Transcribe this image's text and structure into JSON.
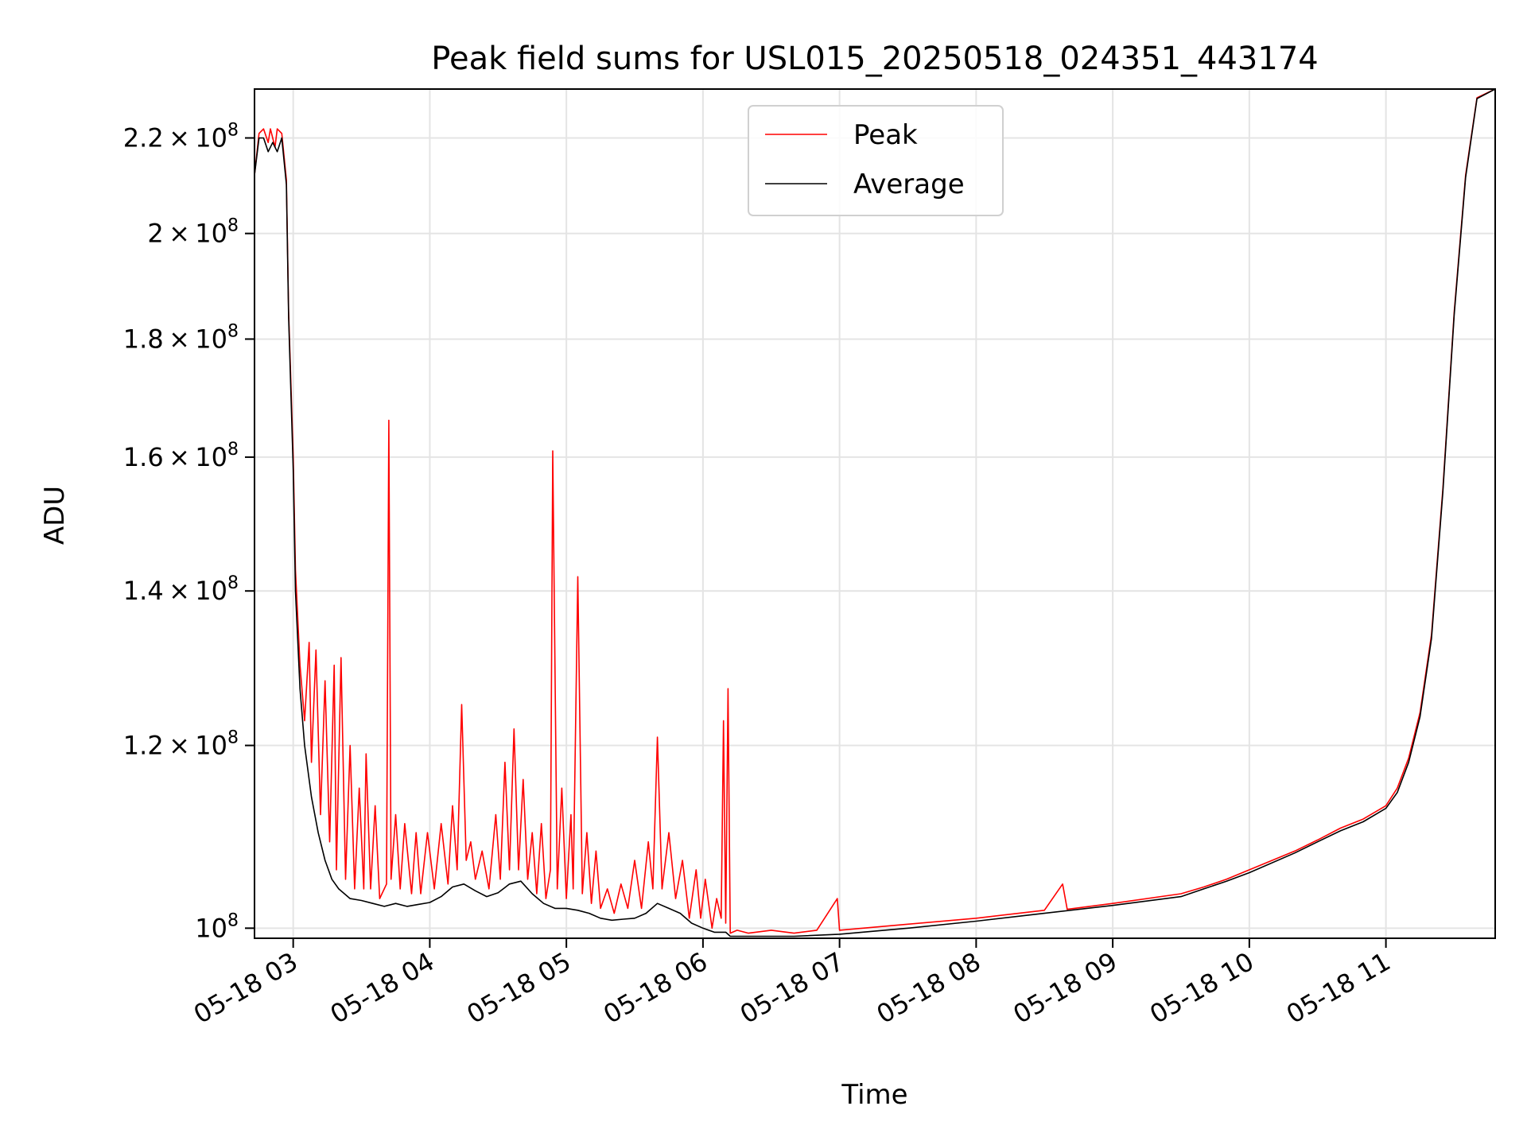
{
  "chart_data": {
    "type": "line",
    "title": "Peak field sums for USL015_20250518_024351_443174",
    "xlabel": "Time",
    "ylabel": "ADU",
    "x_range": [
      "2025-05-18 02:43",
      "2025-05-18 11:48"
    ],
    "ylim": [
      99000000,
      231000000
    ],
    "grid": true,
    "legend_position": "upper center",
    "x_ticks": [
      {
        "time": "2025-05-18 03:00",
        "label": "05-18 03"
      },
      {
        "time": "2025-05-18 04:00",
        "label": "05-18 04"
      },
      {
        "time": "2025-05-18 05:00",
        "label": "05-18 05"
      },
      {
        "time": "2025-05-18 06:00",
        "label": "05-18 06"
      },
      {
        "time": "2025-05-18 07:00",
        "label": "05-18 07"
      },
      {
        "time": "2025-05-18 08:00",
        "label": "05-18 08"
      },
      {
        "time": "2025-05-18 09:00",
        "label": "05-18 09"
      },
      {
        "time": "2025-05-18 10:00",
        "label": "05-18 10"
      },
      {
        "time": "2025-05-18 11:00",
        "label": "05-18 11"
      }
    ],
    "y_ticks": [
      {
        "value": 100000000,
        "mantissa": "",
        "base": "10",
        "exp": "8"
      },
      {
        "value": 120000000,
        "mantissa": "1.2",
        "base": "10",
        "exp": "8"
      },
      {
        "value": 140000000,
        "mantissa": "1.4",
        "base": "10",
        "exp": "8"
      },
      {
        "value": 160000000,
        "mantissa": "1.6",
        "base": "10",
        "exp": "8"
      },
      {
        "value": 180000000,
        "mantissa": "1.8",
        "base": "10",
        "exp": "8"
      },
      {
        "value": 200000000,
        "mantissa": "2",
        "base": "10",
        "exp": "8"
      },
      {
        "value": 220000000,
        "mantissa": "2.2",
        "base": "10",
        "exp": "8"
      }
    ],
    "series": [
      {
        "name": "Peak",
        "color": "#ff0000",
        "points": [
          [
            "2025-05-18 02:43",
            212000000
          ],
          [
            "2025-05-18 02:45",
            221000000
          ],
          [
            "2025-05-18 02:47",
            222000000
          ],
          [
            "2025-05-18 02:49",
            219000000
          ],
          [
            "2025-05-18 02:50",
            222000000
          ],
          [
            "2025-05-18 02:52",
            218000000
          ],
          [
            "2025-05-18 02:53",
            222000000
          ],
          [
            "2025-05-18 02:55",
            221000000
          ],
          [
            "2025-05-18 02:57",
            211000000
          ],
          [
            "2025-05-18 02:58",
            185000000
          ],
          [
            "2025-05-18 03:00",
            160000000
          ],
          [
            "2025-05-18 03:01",
            143000000
          ],
          [
            "2025-05-18 03:03",
            130000000
          ],
          [
            "2025-05-18 03:05",
            123000000
          ],
          [
            "2025-05-18 03:07",
            133000000
          ],
          [
            "2025-05-18 03:08",
            118000000
          ],
          [
            "2025-05-18 03:10",
            132000000
          ],
          [
            "2025-05-18 03:12",
            112000000
          ],
          [
            "2025-05-18 03:14",
            128000000
          ],
          [
            "2025-05-18 03:16",
            109000000
          ],
          [
            "2025-05-18 03:18",
            130000000
          ],
          [
            "2025-05-18 03:19",
            106000000
          ],
          [
            "2025-05-18 03:21",
            131000000
          ],
          [
            "2025-05-18 03:23",
            105000000
          ],
          [
            "2025-05-18 03:25",
            120000000
          ],
          [
            "2025-05-18 03:27",
            104000000
          ],
          [
            "2025-05-18 03:29",
            115000000
          ],
          [
            "2025-05-18 03:31",
            104000000
          ],
          [
            "2025-05-18 03:32",
            119000000
          ],
          [
            "2025-05-18 03:34",
            104000000
          ],
          [
            "2025-05-18 03:36",
            113000000
          ],
          [
            "2025-05-18 03:38",
            103000000
          ],
          [
            "2025-05-18 03:41",
            104500000
          ],
          [
            "2025-05-18 03:42",
            166000000
          ],
          [
            "2025-05-18 03:43",
            105000000
          ],
          [
            "2025-05-18 03:45",
            112000000
          ],
          [
            "2025-05-18 03:47",
            104000000
          ],
          [
            "2025-05-18 03:49",
            111000000
          ],
          [
            "2025-05-18 03:52",
            103500000
          ],
          [
            "2025-05-18 03:54",
            110000000
          ],
          [
            "2025-05-18 03:56",
            103500000
          ],
          [
            "2025-05-18 03:59",
            110000000
          ],
          [
            "2025-05-18 04:02",
            104000000
          ],
          [
            "2025-05-18 04:05",
            111000000
          ],
          [
            "2025-05-18 04:08",
            104500000
          ],
          [
            "2025-05-18 04:10",
            113000000
          ],
          [
            "2025-05-18 04:12",
            106000000
          ],
          [
            "2025-05-18 04:14",
            125000000
          ],
          [
            "2025-05-18 04:16",
            107000000
          ],
          [
            "2025-05-18 04:18",
            109000000
          ],
          [
            "2025-05-18 04:20",
            105000000
          ],
          [
            "2025-05-18 04:23",
            108000000
          ],
          [
            "2025-05-18 04:26",
            104000000
          ],
          [
            "2025-05-18 04:29",
            112000000
          ],
          [
            "2025-05-18 04:31",
            105000000
          ],
          [
            "2025-05-18 04:33",
            118000000
          ],
          [
            "2025-05-18 04:35",
            106000000
          ],
          [
            "2025-05-18 04:37",
            122000000
          ],
          [
            "2025-05-18 04:39",
            106000000
          ],
          [
            "2025-05-18 04:41",
            116000000
          ],
          [
            "2025-05-18 04:43",
            105000000
          ],
          [
            "2025-05-18 04:45",
            110000000
          ],
          [
            "2025-05-18 04:47",
            103500000
          ],
          [
            "2025-05-18 04:49",
            111000000
          ],
          [
            "2025-05-18 04:51",
            103000000
          ],
          [
            "2025-05-18 04:53",
            106000000
          ],
          [
            "2025-05-18 04:54",
            161000000
          ],
          [
            "2025-05-18 04:56",
            104000000
          ],
          [
            "2025-05-18 04:58",
            115000000
          ],
          [
            "2025-05-18 05:00",
            103000000
          ],
          [
            "2025-05-18 05:02",
            112000000
          ],
          [
            "2025-05-18 05:03",
            104000000
          ],
          [
            "2025-05-18 05:05",
            142000000
          ],
          [
            "2025-05-18 05:07",
            103500000
          ],
          [
            "2025-05-18 05:09",
            110000000
          ],
          [
            "2025-05-18 05:11",
            102500000
          ],
          [
            "2025-05-18 05:13",
            108000000
          ],
          [
            "2025-05-18 05:15",
            102000000
          ],
          [
            "2025-05-18 05:18",
            104000000
          ],
          [
            "2025-05-18 05:21",
            101500000
          ],
          [
            "2025-05-18 05:24",
            104500000
          ],
          [
            "2025-05-18 05:27",
            102000000
          ],
          [
            "2025-05-18 05:30",
            107000000
          ],
          [
            "2025-05-18 05:33",
            102000000
          ],
          [
            "2025-05-18 05:36",
            109000000
          ],
          [
            "2025-05-18 05:38",
            104000000
          ],
          [
            "2025-05-18 05:40",
            121000000
          ],
          [
            "2025-05-18 05:42",
            104000000
          ],
          [
            "2025-05-18 05:45",
            110000000
          ],
          [
            "2025-05-18 05:48",
            103000000
          ],
          [
            "2025-05-18 05:51",
            107000000
          ],
          [
            "2025-05-18 05:54",
            101000000
          ],
          [
            "2025-05-18 05:57",
            106000000
          ],
          [
            "2025-05-18 05:59",
            101000000
          ],
          [
            "2025-05-18 06:01",
            105000000
          ],
          [
            "2025-05-18 06:04",
            100000000
          ],
          [
            "2025-05-18 06:06",
            103000000
          ],
          [
            "2025-05-18 06:08",
            101000000
          ],
          [
            "2025-05-18 06:09",
            123000000
          ],
          [
            "2025-05-18 06:10",
            100500000
          ],
          [
            "2025-05-18 06:11",
            127000000
          ],
          [
            "2025-05-18 06:12",
            99500000
          ],
          [
            "2025-05-18 06:15",
            99800000
          ],
          [
            "2025-05-18 06:20",
            99500000
          ],
          [
            "2025-05-18 06:30",
            99800000
          ],
          [
            "2025-05-18 06:40",
            99500000
          ],
          [
            "2025-05-18 06:50",
            99800000
          ],
          [
            "2025-05-18 06:59",
            103000000
          ],
          [
            "2025-05-18 07:00",
            99800000
          ],
          [
            "2025-05-18 07:30",
            100400000
          ],
          [
            "2025-05-18 08:00",
            101000000
          ],
          [
            "2025-05-18 08:30",
            101800000
          ],
          [
            "2025-05-18 08:38",
            104500000
          ],
          [
            "2025-05-18 08:40",
            101900000
          ],
          [
            "2025-05-18 09:00",
            102500000
          ],
          [
            "2025-05-18 09:30",
            103500000
          ],
          [
            "2025-05-18 09:40",
            104200000
          ],
          [
            "2025-05-18 09:50",
            105000000
          ],
          [
            "2025-05-18 10:00",
            106000000
          ],
          [
            "2025-05-18 10:20",
            108000000
          ],
          [
            "2025-05-18 10:30",
            109200000
          ],
          [
            "2025-05-18 10:40",
            110500000
          ],
          [
            "2025-05-18 10:50",
            111500000
          ],
          [
            "2025-05-18 11:00",
            113000000
          ],
          [
            "2025-05-18 11:05",
            115000000
          ],
          [
            "2025-05-18 11:10",
            118500000
          ],
          [
            "2025-05-18 11:15",
            124000000
          ],
          [
            "2025-05-18 11:20",
            134000000
          ],
          [
            "2025-05-18 11:25",
            155000000
          ],
          [
            "2025-05-18 11:30",
            185000000
          ],
          [
            "2025-05-18 11:35",
            212000000
          ],
          [
            "2025-05-18 11:40",
            229000000
          ],
          [
            "2025-05-18 11:48",
            231000000
          ]
        ]
      },
      {
        "name": "Average",
        "color": "#000000",
        "points": [
          [
            "2025-05-18 02:43",
            212000000
          ],
          [
            "2025-05-18 02:45",
            220000000
          ],
          [
            "2025-05-18 02:47",
            220000000
          ],
          [
            "2025-05-18 02:49",
            217000000
          ],
          [
            "2025-05-18 02:51",
            219000000
          ],
          [
            "2025-05-18 02:53",
            217000000
          ],
          [
            "2025-05-18 02:55",
            220000000
          ],
          [
            "2025-05-18 02:57",
            210000000
          ],
          [
            "2025-05-18 02:58",
            184000000
          ],
          [
            "2025-05-18 03:00",
            158000000
          ],
          [
            "2025-05-18 03:01",
            140000000
          ],
          [
            "2025-05-18 03:03",
            127000000
          ],
          [
            "2025-05-18 03:05",
            120000000
          ],
          [
            "2025-05-18 03:08",
            114000000
          ],
          [
            "2025-05-18 03:11",
            110000000
          ],
          [
            "2025-05-18 03:14",
            107000000
          ],
          [
            "2025-05-18 03:17",
            105000000
          ],
          [
            "2025-05-18 03:20",
            104000000
          ],
          [
            "2025-05-18 03:25",
            103000000
          ],
          [
            "2025-05-18 03:30",
            102800000
          ],
          [
            "2025-05-18 03:35",
            102500000
          ],
          [
            "2025-05-18 03:40",
            102200000
          ],
          [
            "2025-05-18 03:45",
            102500000
          ],
          [
            "2025-05-18 03:50",
            102200000
          ],
          [
            "2025-05-18 03:55",
            102400000
          ],
          [
            "2025-05-18 04:00",
            102600000
          ],
          [
            "2025-05-18 04:05",
            103200000
          ],
          [
            "2025-05-18 04:10",
            104200000
          ],
          [
            "2025-05-18 04:15",
            104500000
          ],
          [
            "2025-05-18 04:20",
            103800000
          ],
          [
            "2025-05-18 04:25",
            103200000
          ],
          [
            "2025-05-18 04:30",
            103600000
          ],
          [
            "2025-05-18 04:35",
            104500000
          ],
          [
            "2025-05-18 04:40",
            104800000
          ],
          [
            "2025-05-18 04:45",
            103500000
          ],
          [
            "2025-05-18 04:50",
            102500000
          ],
          [
            "2025-05-18 04:55",
            102000000
          ],
          [
            "2025-05-18 05:00",
            102000000
          ],
          [
            "2025-05-18 05:05",
            101800000
          ],
          [
            "2025-05-18 05:10",
            101500000
          ],
          [
            "2025-05-18 05:15",
            101000000
          ],
          [
            "2025-05-18 05:20",
            100800000
          ],
          [
            "2025-05-18 05:25",
            100900000
          ],
          [
            "2025-05-18 05:30",
            101000000
          ],
          [
            "2025-05-18 05:35",
            101500000
          ],
          [
            "2025-05-18 05:40",
            102500000
          ],
          [
            "2025-05-18 05:45",
            102000000
          ],
          [
            "2025-05-18 05:50",
            101500000
          ],
          [
            "2025-05-18 05:55",
            100500000
          ],
          [
            "2025-05-18 06:00",
            100000000
          ],
          [
            "2025-05-18 06:05",
            99600000
          ],
          [
            "2025-05-18 06:10",
            99600000
          ],
          [
            "2025-05-18 06:12",
            99200000
          ],
          [
            "2025-05-18 06:20",
            99200000
          ],
          [
            "2025-05-18 06:40",
            99200000
          ],
          [
            "2025-05-18 07:00",
            99400000
          ],
          [
            "2025-05-18 07:30",
            100000000
          ],
          [
            "2025-05-18 08:00",
            100700000
          ],
          [
            "2025-05-18 08:30",
            101500000
          ],
          [
            "2025-05-18 09:00",
            102300000
          ],
          [
            "2025-05-18 09:30",
            103200000
          ],
          [
            "2025-05-18 09:40",
            104000000
          ],
          [
            "2025-05-18 09:50",
            104800000
          ],
          [
            "2025-05-18 10:00",
            105700000
          ],
          [
            "2025-05-18 10:20",
            107800000
          ],
          [
            "2025-05-18 10:30",
            109000000
          ],
          [
            "2025-05-18 10:40",
            110200000
          ],
          [
            "2025-05-18 10:50",
            111200000
          ],
          [
            "2025-05-18 11:00",
            112700000
          ],
          [
            "2025-05-18 11:05",
            114500000
          ],
          [
            "2025-05-18 11:10",
            118000000
          ],
          [
            "2025-05-18 11:15",
            123500000
          ],
          [
            "2025-05-18 11:20",
            133500000
          ],
          [
            "2025-05-18 11:25",
            154500000
          ],
          [
            "2025-05-18 11:30",
            184500000
          ],
          [
            "2025-05-18 11:35",
            211500000
          ],
          [
            "2025-05-18 11:40",
            228800000
          ],
          [
            "2025-05-18 11:48",
            231000000
          ]
        ]
      }
    ]
  }
}
